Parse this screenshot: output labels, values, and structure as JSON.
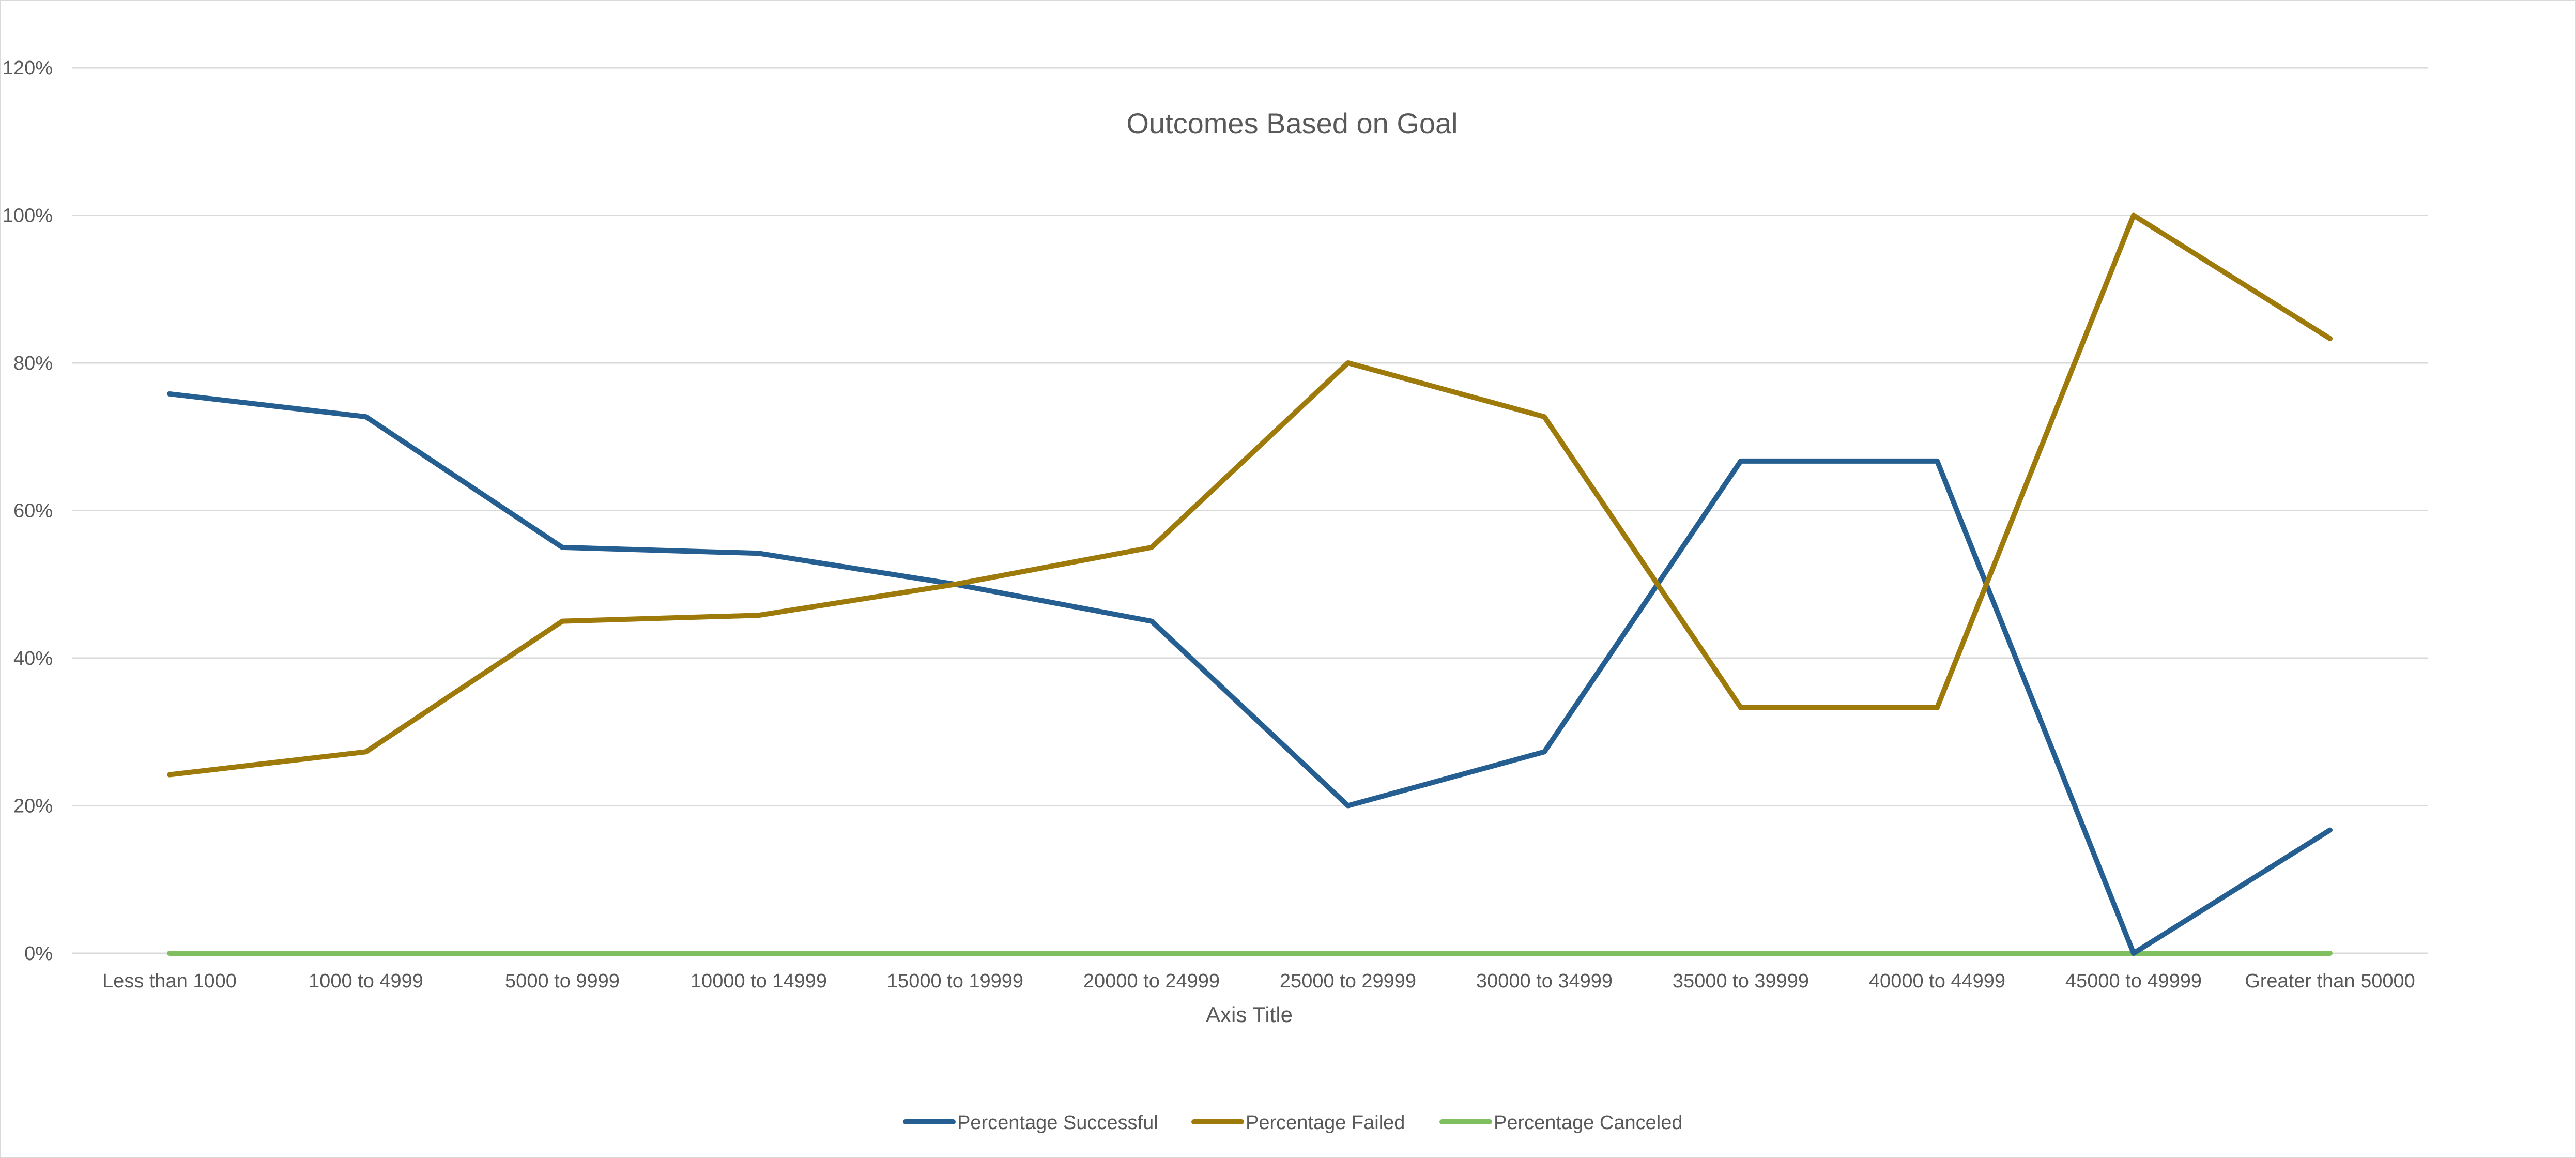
{
  "chart_data": {
    "type": "line",
    "title": "Outcomes Based on Goal",
    "xlabel": "Axis Title",
    "ylabel": "",
    "ylim": [
      0,
      120
    ],
    "yticks": [
      "0%",
      "20%",
      "40%",
      "60%",
      "80%",
      "100%",
      "120%"
    ],
    "grid": true,
    "legend_position": "bottom",
    "categories": [
      "Less than 1000",
      "1000 to 4999",
      "5000 to 9999",
      "10000 to 14999",
      "15000 to 19999",
      "20000 to 24999",
      "25000 to 29999",
      "30000 to 34999",
      "35000 to 39999",
      "40000 to 44999",
      "45000 to 49999",
      "Greater than 50000"
    ],
    "series": [
      {
        "name": "Percentage Successful",
        "color": "#255e91",
        "values": [
          75.8,
          72.7,
          55.0,
          54.2,
          50.0,
          45.0,
          20.0,
          27.3,
          66.7,
          66.7,
          0.0,
          16.7
        ]
      },
      {
        "name": "Percentage Failed",
        "color": "#9e7a0a",
        "values": [
          24.2,
          27.3,
          45.0,
          45.8,
          50.0,
          55.0,
          80.0,
          72.7,
          33.3,
          33.3,
          100.0,
          83.3
        ]
      },
      {
        "name": "Percentage Canceled",
        "color": "#7fbf5f",
        "values": [
          0,
          0,
          0,
          0,
          0,
          0,
          0,
          0,
          0,
          0,
          0,
          0
        ]
      }
    ]
  }
}
